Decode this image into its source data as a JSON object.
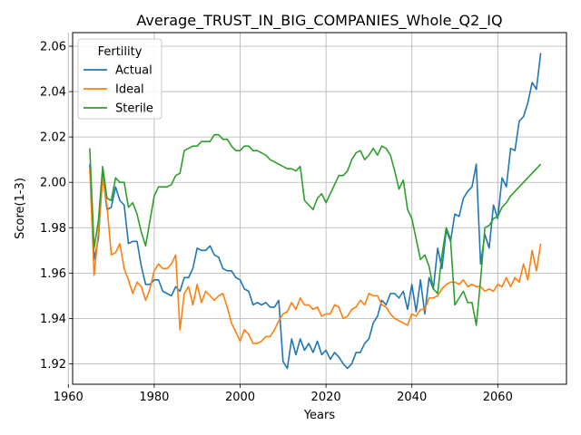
{
  "chart_data": {
    "type": "line",
    "title": "Average_TRUST_IN_BIG_COMPANIES_Whole_Q2_IQ",
    "xlabel": "Years",
    "ylabel": "Score(1-3)",
    "xlim": [
      1961,
      2076
    ],
    "ylim": [
      1.911,
      2.066
    ],
    "xticks": [
      1960,
      1980,
      2000,
      2020,
      2040,
      2060
    ],
    "yticks": [
      1.92,
      1.94,
      1.96,
      1.98,
      2.0,
      2.02,
      2.04,
      2.06
    ],
    "xtick_labels": [
      "1960",
      "1980",
      "2000",
      "2020",
      "2040",
      "2060"
    ],
    "ytick_labels": [
      "1.92",
      "1.94",
      "1.96",
      "1.98",
      "2.00",
      "2.02",
      "2.04",
      "2.06"
    ],
    "grid": true,
    "legend": {
      "title": "Fertility",
      "position": "top-left"
    },
    "x_start": 1965,
    "series": [
      {
        "name": "Actual",
        "color": "#1f77b4",
        "values": [
          2.008,
          1.966,
          1.975,
          2.004,
          1.988,
          1.989,
          1.998,
          1.992,
          1.99,
          1.973,
          1.974,
          1.974,
          1.963,
          1.955,
          1.955,
          1.957,
          1.957,
          1.952,
          1.951,
          1.95,
          1.954,
          1.952,
          1.958,
          1.958,
          1.962,
          1.971,
          1.97,
          1.97,
          1.972,
          1.968,
          1.967,
          1.962,
          1.961,
          1.961,
          1.958,
          1.957,
          1.953,
          1.952,
          1.946,
          1.947,
          1.946,
          1.947,
          1.945,
          1.945,
          1.948,
          1.921,
          1.918,
          1.931,
          1.924,
          1.931,
          1.926,
          1.929,
          1.925,
          1.93,
          1.924,
          1.926,
          1.922,
          1.925,
          1.923,
          1.92,
          1.918,
          1.92,
          1.925,
          1.925,
          1.929,
          1.931,
          1.938,
          1.941,
          1.948,
          1.946,
          1.951,
          1.951,
          1.949,
          1.952,
          1.944,
          1.955,
          1.943,
          1.957,
          1.942,
          1.958,
          1.953,
          1.971,
          1.962,
          1.979,
          1.974,
          1.986,
          1.985,
          1.993,
          1.996,
          1.998,
          2.008,
          1.964,
          1.977,
          1.971,
          1.99,
          1.984,
          2.002,
          1.998,
          2.015,
          2.014,
          2.027,
          2.029,
          2.035,
          2.044,
          2.041,
          2.057
        ]
      },
      {
        "name": "Ideal",
        "color": "#ff7f0e",
        "values": [
          2.006,
          1.959,
          1.978,
          2.002,
          1.99,
          1.968,
          1.969,
          1.973,
          1.962,
          1.957,
          1.951,
          1.956,
          1.954,
          1.948,
          1.953,
          1.961,
          1.964,
          1.962,
          1.962,
          1.964,
          1.968,
          1.935,
          1.951,
          1.954,
          1.946,
          1.955,
          1.947,
          1.952,
          1.95,
          1.948,
          1.95,
          1.951,
          1.945,
          1.938,
          1.934,
          1.93,
          1.935,
          1.933,
          1.929,
          1.929,
          1.93,
          1.932,
          1.932,
          1.935,
          1.939,
          1.942,
          1.943,
          1.947,
          1.944,
          1.949,
          1.946,
          1.946,
          1.944,
          1.945,
          1.941,
          1.942,
          1.942,
          1.946,
          1.945,
          1.94,
          1.941,
          1.944,
          1.945,
          1.948,
          1.946,
          1.951,
          1.95,
          1.95,
          1.946,
          1.945,
          1.942,
          1.94,
          1.939,
          1.938,
          1.937,
          1.942,
          1.941,
          1.944,
          1.944,
          1.949,
          1.949,
          1.95,
          1.953,
          1.955,
          1.956,
          1.956,
          1.955,
          1.957,
          1.954,
          1.955,
          1.954,
          1.954,
          1.952,
          1.953,
          1.952,
          1.955,
          1.954,
          1.958,
          1.954,
          1.958,
          1.956,
          1.964,
          1.957,
          1.97,
          1.961,
          1.973
        ]
      },
      {
        "name": "Sterile",
        "color": "#2ca02c",
        "values": [
          2.015,
          1.971,
          1.983,
          2.007,
          1.993,
          1.992,
          2.002,
          2.0,
          2.0,
          1.989,
          1.991,
          1.986,
          1.978,
          1.972,
          1.983,
          1.994,
          1.998,
          1.998,
          1.998,
          1.999,
          2.003,
          2.004,
          2.014,
          2.015,
          2.016,
          2.016,
          2.018,
          2.018,
          2.018,
          2.021,
          2.021,
          2.019,
          2.019,
          2.016,
          2.014,
          2.014,
          2.016,
          2.016,
          2.014,
          2.014,
          2.013,
          2.012,
          2.01,
          2.009,
          2.008,
          2.007,
          2.006,
          2.006,
          2.005,
          2.007,
          1.992,
          1.99,
          1.988,
          1.993,
          1.995,
          1.991,
          1.995,
          1.999,
          2.003,
          2.003,
          2.005,
          2.01,
          2.013,
          2.014,
          2.01,
          2.012,
          2.015,
          2.012,
          2.016,
          2.015,
          2.012,
          2.005,
          1.997,
          2.001,
          1.988,
          1.984,
          1.975,
          1.966,
          1.968,
          1.963,
          1.953,
          1.951,
          1.968,
          1.98,
          1.975,
          1.946,
          1.949,
          1.952,
          1.947,
          1.947,
          1.937,
          1.957,
          1.98,
          1.981,
          1.984,
          1.985,
          1.989,
          1.991,
          1.994,
          1.996,
          1.998,
          2.0,
          2.002,
          2.004,
          2.006,
          2.008
        ]
      }
    ]
  }
}
